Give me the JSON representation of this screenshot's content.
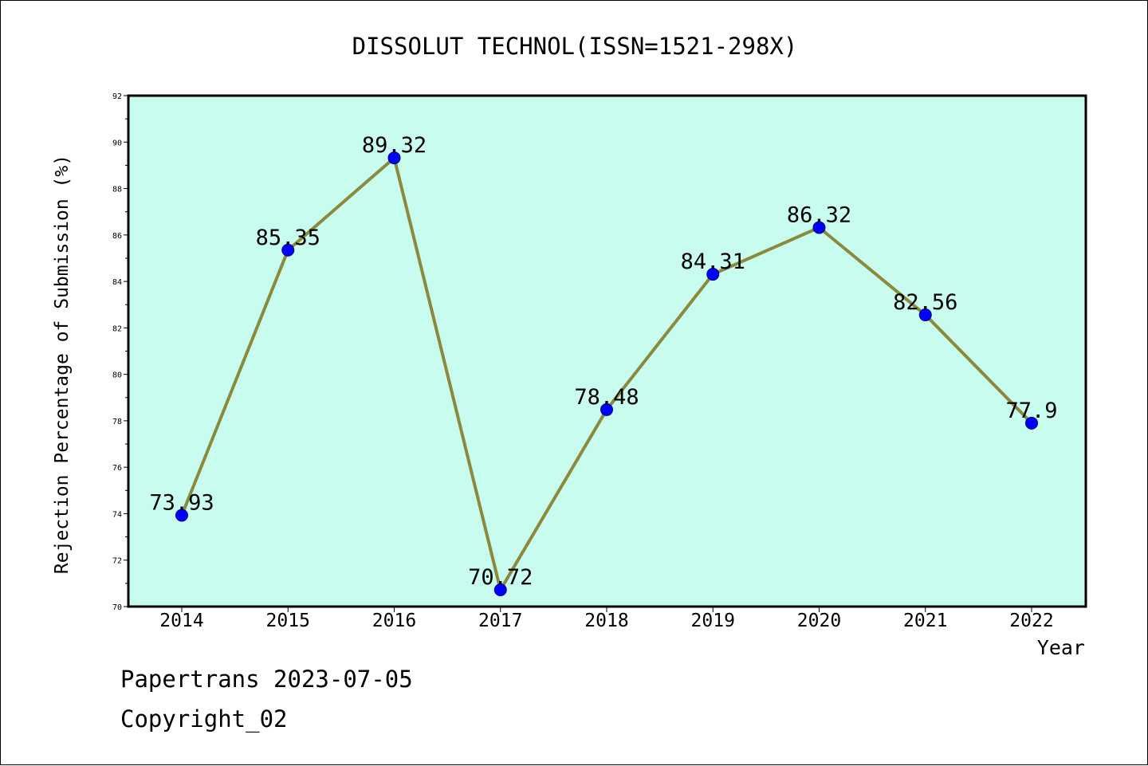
{
  "chart_data": {
    "type": "line",
    "title": "DISSOLUT TECHNOL(ISSN=1521-298X)",
    "xlabel": "Year",
    "ylabel": "Rejection Percentage of Submission (%)",
    "categories": [
      "2014",
      "2015",
      "2016",
      "2017",
      "2018",
      "2019",
      "2020",
      "2021",
      "2022"
    ],
    "series": [
      {
        "values": [
          73.93,
          85.35,
          89.32,
          70.72,
          78.48,
          84.31,
          86.32,
          82.56,
          77.9
        ],
        "data_labels": [
          "73.93",
          "85.35",
          "89.32",
          "70.72",
          "78.48",
          "84.31",
          "86.32",
          "82.56",
          "77.9"
        ]
      }
    ],
    "ylim": [
      70,
      92
    ],
    "yticks": [
      "70",
      "72",
      "74",
      "76",
      "78",
      "80",
      "82",
      "84",
      "86",
      "88",
      "90",
      "92"
    ],
    "grid": false,
    "plot_background": "#c8fcee",
    "line_color": "#8b8a3c",
    "marker_color": "#0000ff"
  },
  "footer": {
    "credit": "Papertrans 2023-07-05",
    "copyright": "Copyright_02"
  }
}
